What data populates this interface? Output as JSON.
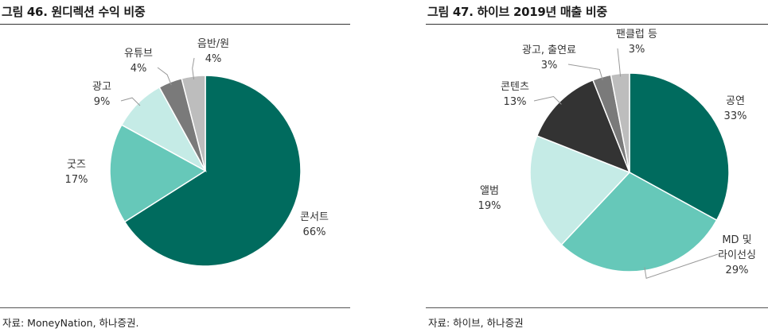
{
  "charts": [
    {
      "figure_title": "그림 46. 원디렉션 수익 비중",
      "source": "자료: MoneyNation, 하나증권.",
      "chart_data": {
        "type": "pie",
        "title": "그림 46. 원디렉션 수익 비중",
        "start_angle_deg": 0,
        "direction": "clockwise",
        "slices": [
          {
            "label": "콘서트",
            "value": 66,
            "value_label": "66%",
            "color": "#006b5e"
          },
          {
            "label": "굿즈",
            "value": 17,
            "value_label": "17%",
            "color": "#66c8b9"
          },
          {
            "label": "광고",
            "value": 9,
            "value_label": "9%",
            "color": "#c5ebe6"
          },
          {
            "label": "유튜브",
            "value": 4,
            "value_label": "4%",
            "color": "#7a7a7a"
          },
          {
            "label": "음반/원",
            "value": 4,
            "value_label": "4%",
            "color": "#bdbdbd"
          }
        ]
      }
    },
    {
      "figure_title": "그림 47. 하이브 2019년 매출 비중",
      "source": "자료: 하이브, 하나증권",
      "chart_data": {
        "type": "pie",
        "title": "그림 47. 하이브 2019년 매출 비중",
        "start_angle_deg": 0,
        "direction": "clockwise",
        "slices": [
          {
            "label": "공연",
            "value": 33,
            "value_label": "33%",
            "color": "#006b5e"
          },
          {
            "label": "MD 및 라이선싱",
            "value": 29,
            "value_label": "29%",
            "color": "#66c8b9"
          },
          {
            "label": "앨범",
            "value": 19,
            "value_label": "19%",
            "color": "#c5ebe6"
          },
          {
            "label": "콘텐츠",
            "value": 13,
            "value_label": "13%",
            "color": "#333333"
          },
          {
            "label": "광고, 출연료",
            "value": 3,
            "value_label": "3%",
            "color": "#7a7a7a"
          },
          {
            "label": "팬클럽 등",
            "value": 3,
            "value_label": "3%",
            "color": "#bdbdbd"
          }
        ]
      }
    }
  ]
}
